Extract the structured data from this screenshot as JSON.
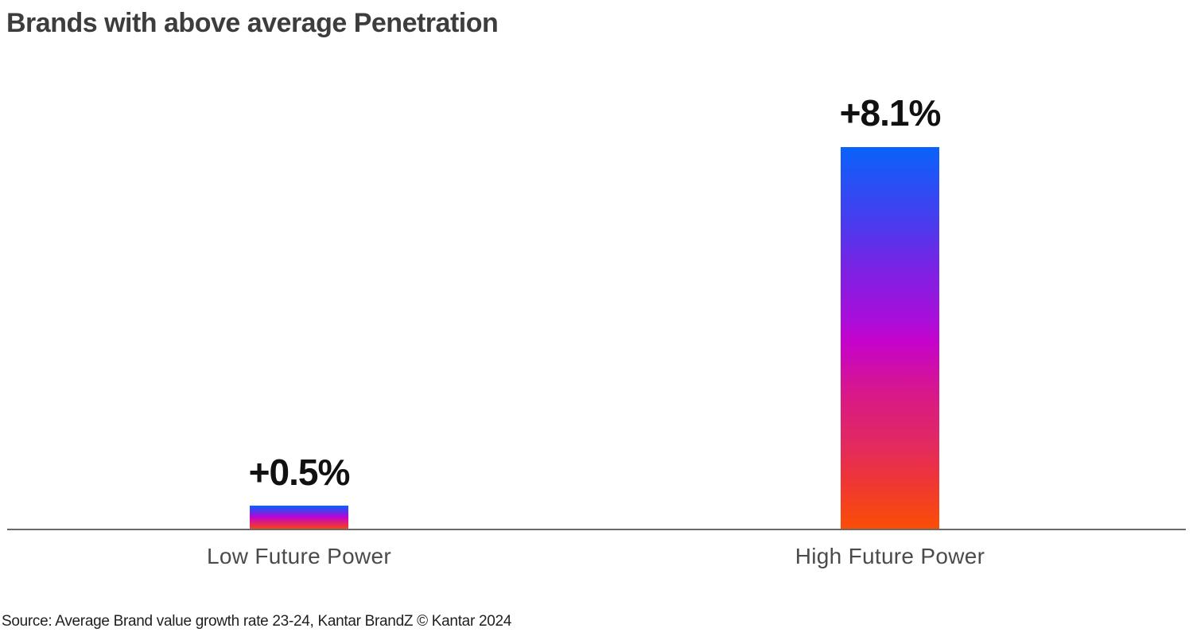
{
  "title": "Brands with above average Penetration",
  "source": "Source: Average Brand value growth rate 23-24, Kantar BrandZ © Kantar 2024",
  "chart_data": {
    "type": "bar",
    "title": "Brands with above average Penetration",
    "categories": [
      "Low Future Power",
      "High Future Power"
    ],
    "values": [
      0.5,
      8.1
    ],
    "value_labels": [
      "+0.5%",
      "+8.1%"
    ],
    "xlabel": "",
    "ylabel": "",
    "ylim": [
      0,
      8.8
    ],
    "grid": false,
    "legend": "none",
    "axis_line_color": "#6a6a6a",
    "bar_gradient_top_to_bottom": [
      "#0a62fa",
      "#4a3bee",
      "#7b22e3",
      "#a90eda",
      "#c503ca",
      "#d91987",
      "#e22a5f",
      "#ee3537",
      "#fb4e05"
    ],
    "source": "Source: Average Brand value growth rate 23-24, Kantar BrandZ © Kantar 2024"
  }
}
